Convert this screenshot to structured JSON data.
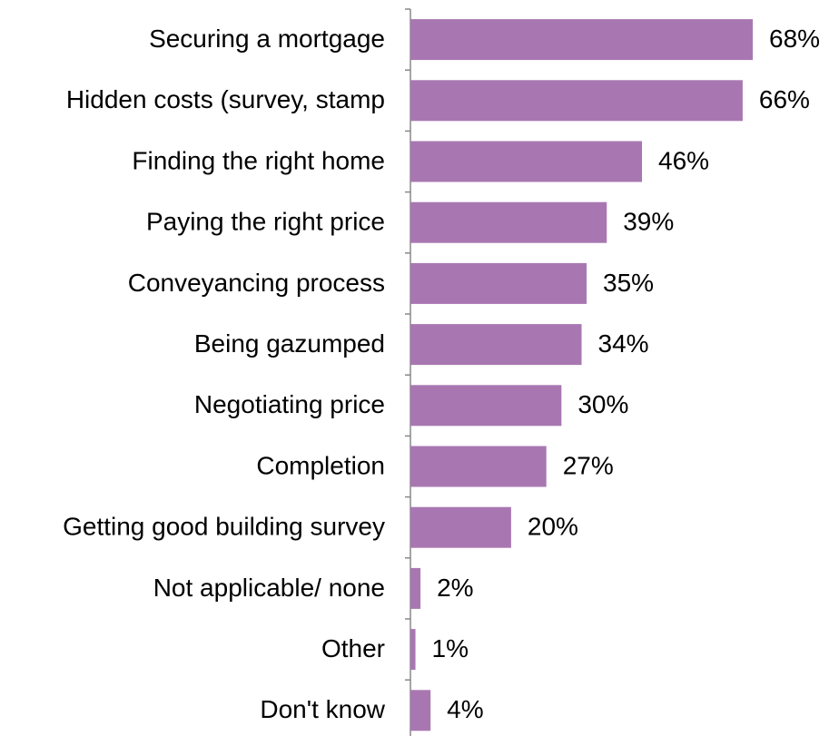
{
  "chart_data": {
    "type": "bar",
    "orientation": "horizontal",
    "categories": [
      "Securing a mortgage",
      "Hidden costs (survey, stamp",
      "Finding the right home",
      "Paying the right price",
      "Conveyancing process",
      "Being gazumped",
      "Negotiating price",
      "Completion",
      "Getting good building survey",
      "Not applicable/ none",
      "Other",
      "Don't know"
    ],
    "values": [
      68,
      66,
      46,
      39,
      35,
      34,
      30,
      27,
      20,
      2,
      1,
      4
    ],
    "value_labels": [
      "68%",
      "66%",
      "46%",
      "39%",
      "35%",
      "34%",
      "30%",
      "27%",
      "20%",
      "2%",
      "1%",
      "4%"
    ],
    "color": "#a877b1"
  }
}
